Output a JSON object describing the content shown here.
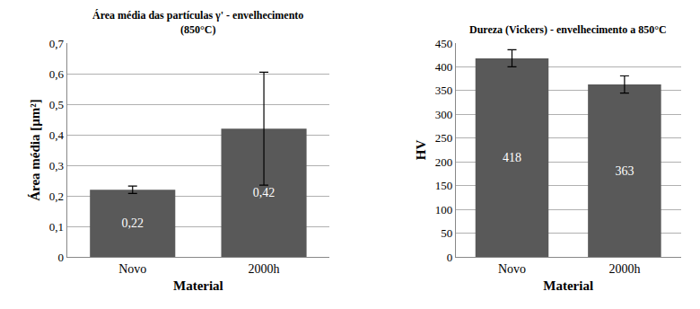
{
  "chart_data": [
    {
      "type": "bar",
      "title": "Área média das partículas γ' - envelhecimento (850°C)",
      "x_label": "Material",
      "y_label": "Área média [µm²]",
      "categories": [
        "Novo",
        "2000h"
      ],
      "values": [
        0.22,
        0.42
      ],
      "value_labels": [
        "0,22",
        "0,42"
      ],
      "errors": [
        0.012,
        0.185
      ],
      "color": "#595959",
      "ylim": [
        0,
        0.7
      ],
      "yticks": [
        0,
        {
          "value": 0.1,
          "label": "0,1"
        },
        {
          "value": 0.2,
          "label": "0,2"
        },
        {
          "value": 0.3,
          "label": "0,3"
        },
        {
          "value": 0.4,
          "label": "0,4"
        },
        {
          "value": 0.5,
          "label": "0,5"
        },
        {
          "value": 0.6,
          "label": "0,6"
        },
        {
          "value": 0.7,
          "label": "0,7"
        }
      ],
      "grid": true,
      "data_labels": true
    },
    {
      "type": "bar",
      "title": "Dureza (Vickers) - envelhecimento a 850°C",
      "x_label": "Material",
      "y_label": "HV",
      "categories": [
        "Novo",
        "2000h"
      ],
      "values": [
        418,
        363
      ],
      "errors": [
        18,
        18
      ],
      "color": "#595959",
      "ylim": [
        0,
        450
      ],
      "yticks": [
        0,
        50,
        100,
        150,
        200,
        250,
        300,
        350,
        400,
        450
      ],
      "grid": true,
      "data_labels": true
    }
  ]
}
